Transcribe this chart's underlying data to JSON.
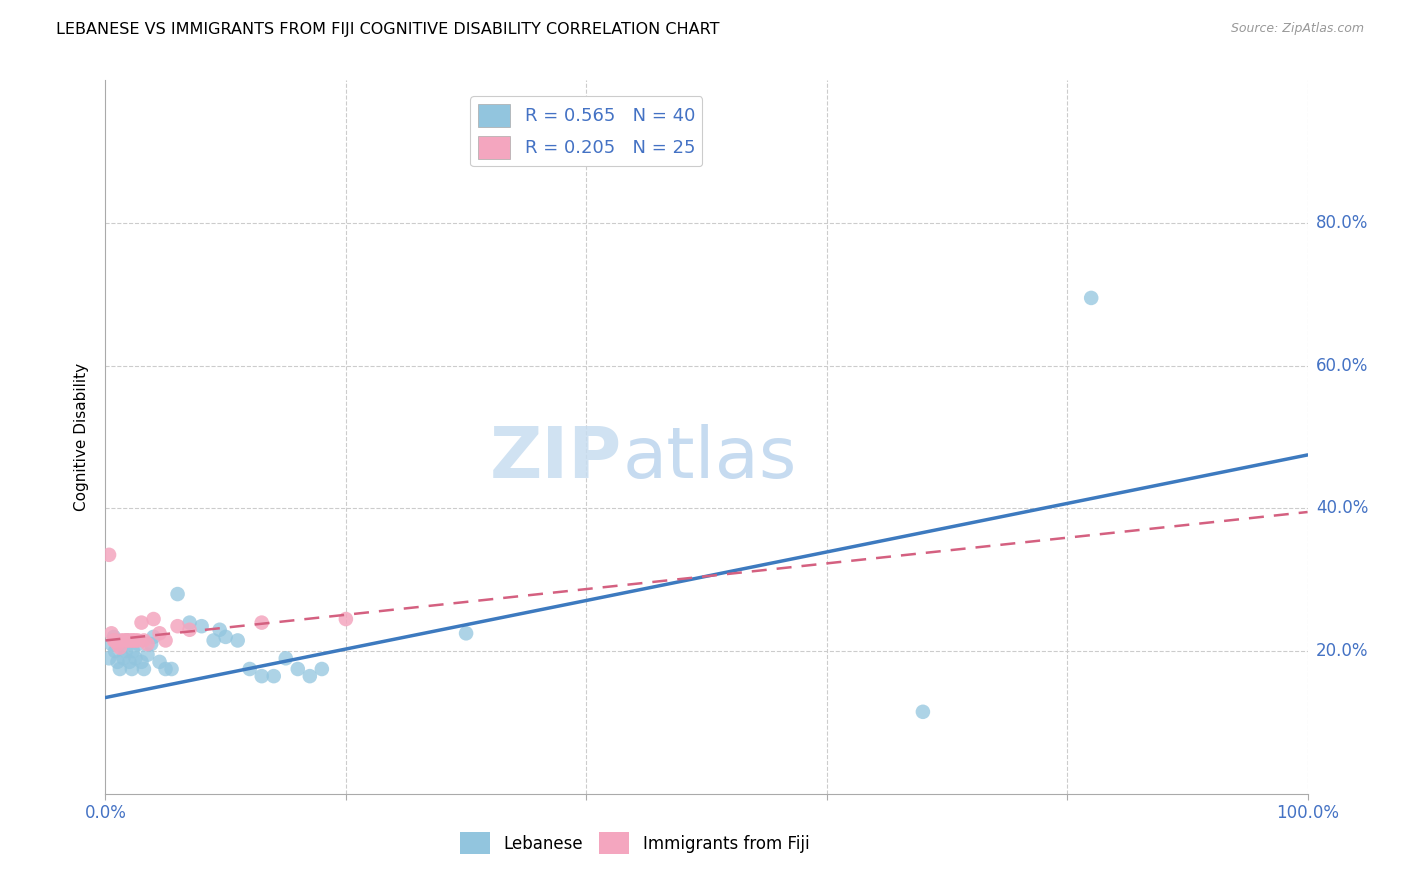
{
  "title": "LEBANESE VS IMMIGRANTS FROM FIJI COGNITIVE DISABILITY CORRELATION CHART",
  "source": "Source: ZipAtlas.com",
  "ylabel": "Cognitive Disability",
  "watermark_zip": "ZIP",
  "watermark_atlas": "atlas",
  "xlim": [
    0.0,
    1.0
  ],
  "ylim": [
    0.0,
    1.0
  ],
  "xtick_vals": [
    0.0,
    0.2,
    0.4,
    0.6,
    0.8,
    1.0
  ],
  "xtick_labels": [
    "0.0%",
    "",
    "",
    "",
    "",
    "100.0%"
  ],
  "ytick_vals": [
    0.2,
    0.4,
    0.6,
    0.8
  ],
  "ytick_labels_right": [
    "20.0%",
    "40.0%",
    "60.0%",
    "80.0%"
  ],
  "blue_color": "#92c5de",
  "pink_color": "#f4a6bf",
  "trend_blue_color": "#3d7abf",
  "trend_pink_color": "#d46080",
  "blue_scatter": [
    [
      0.003,
      0.19
    ],
    [
      0.005,
      0.21
    ],
    [
      0.007,
      0.22
    ],
    [
      0.008,
      0.2
    ],
    [
      0.01,
      0.185
    ],
    [
      0.012,
      0.175
    ],
    [
      0.013,
      0.21
    ],
    [
      0.015,
      0.19
    ],
    [
      0.017,
      0.2
    ],
    [
      0.018,
      0.215
    ],
    [
      0.02,
      0.185
    ],
    [
      0.022,
      0.175
    ],
    [
      0.023,
      0.2
    ],
    [
      0.025,
      0.19
    ],
    [
      0.027,
      0.21
    ],
    [
      0.03,
      0.185
    ],
    [
      0.032,
      0.175
    ],
    [
      0.035,
      0.195
    ],
    [
      0.038,
      0.21
    ],
    [
      0.04,
      0.22
    ],
    [
      0.045,
      0.185
    ],
    [
      0.05,
      0.175
    ],
    [
      0.055,
      0.175
    ],
    [
      0.06,
      0.28
    ],
    [
      0.07,
      0.24
    ],
    [
      0.08,
      0.235
    ],
    [
      0.09,
      0.215
    ],
    [
      0.095,
      0.23
    ],
    [
      0.1,
      0.22
    ],
    [
      0.11,
      0.215
    ],
    [
      0.12,
      0.175
    ],
    [
      0.13,
      0.165
    ],
    [
      0.14,
      0.165
    ],
    [
      0.15,
      0.19
    ],
    [
      0.16,
      0.175
    ],
    [
      0.17,
      0.165
    ],
    [
      0.18,
      0.175
    ],
    [
      0.3,
      0.225
    ],
    [
      0.68,
      0.115
    ],
    [
      0.82,
      0.695
    ]
  ],
  "pink_scatter": [
    [
      0.003,
      0.335
    ],
    [
      0.005,
      0.225
    ],
    [
      0.007,
      0.215
    ],
    [
      0.008,
      0.215
    ],
    [
      0.01,
      0.21
    ],
    [
      0.012,
      0.205
    ],
    [
      0.013,
      0.215
    ],
    [
      0.015,
      0.215
    ],
    [
      0.017,
      0.215
    ],
    [
      0.018,
      0.215
    ],
    [
      0.02,
      0.215
    ],
    [
      0.022,
      0.215
    ],
    [
      0.023,
      0.215
    ],
    [
      0.025,
      0.215
    ],
    [
      0.027,
      0.215
    ],
    [
      0.03,
      0.24
    ],
    [
      0.032,
      0.215
    ],
    [
      0.035,
      0.21
    ],
    [
      0.04,
      0.245
    ],
    [
      0.045,
      0.225
    ],
    [
      0.05,
      0.215
    ],
    [
      0.06,
      0.235
    ],
    [
      0.07,
      0.23
    ],
    [
      0.13,
      0.24
    ],
    [
      0.2,
      0.245
    ]
  ],
  "blue_trend_x": [
    0.0,
    1.0
  ],
  "blue_trend_y": [
    0.135,
    0.475
  ],
  "pink_trend_x": [
    0.0,
    1.0
  ],
  "pink_trend_y": [
    0.215,
    0.395
  ],
  "legend1_label": "R = 0.565   N = 40",
  "legend2_label": "R = 0.205   N = 25",
  "bottom_legend1": "Lebanese",
  "bottom_legend2": "Immigrants from Fiji"
}
